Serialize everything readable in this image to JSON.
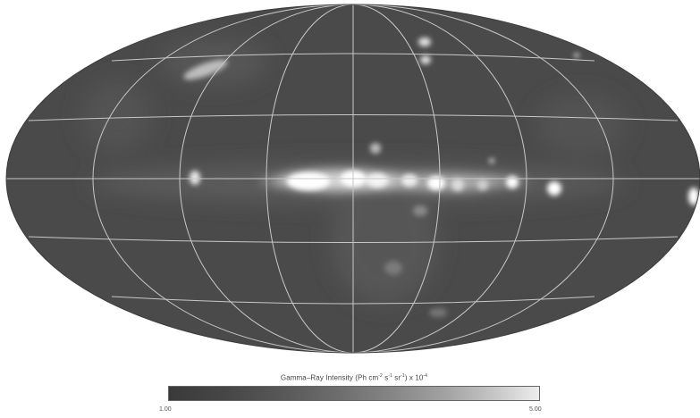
{
  "figure": {
    "projection": "aitoff-hammer all-sky",
    "background_color": "#4a4a4a",
    "grid_color": "#c8c8c8",
    "source_color": "#ffffff"
  },
  "colorbar": {
    "title_main": "Gamma–Ray Intensity (Ph cm",
    "title_exp1": "-2",
    "title_mid1": " s",
    "title_exp2": "-1",
    "title_mid2": " sr",
    "title_exp3": "-1",
    "title_end": ")   x 10",
    "title_exp4": "-4",
    "min_label": "1.00",
    "max_label": "5.00",
    "gradient_from": "#3a3a3a",
    "gradient_to": "#ececec"
  }
}
